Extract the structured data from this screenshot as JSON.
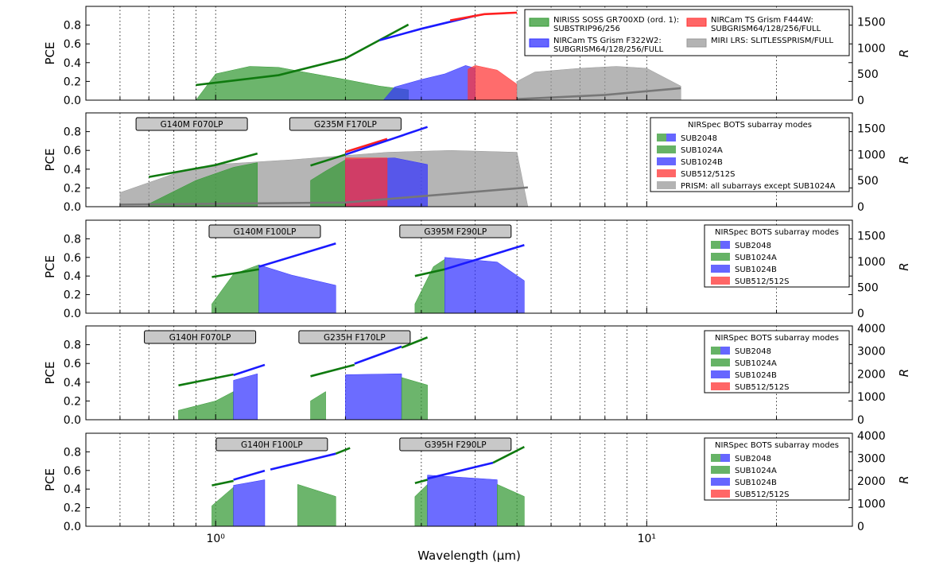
{
  "chart_data": {
    "type": "area",
    "x_scale": "log",
    "xlabel": "Wavelength",
    "xlabel_unit": "(μm)",
    "xlim": [
      0.5,
      30
    ],
    "x_major_ticks": [
      {
        "value": 1,
        "label": "10⁰"
      },
      {
        "value": 10,
        "label": "10¹"
      }
    ],
    "ylabel_left": "PCE",
    "ylabel_right": "R",
    "colors": {
      "green": "#0f7a0f",
      "blue": "#1a1aff",
      "red": "#ff2020",
      "gray": "#777777",
      "fill_green": "#339933",
      "fill_blue": "#3333ff",
      "fill_red": "#ff3333",
      "fill_gray": "#999999"
    },
    "panels": [
      {
        "ylim": [
          0,
          1.0
        ],
        "yticks": [
          "0.0",
          "0.2",
          "0.4",
          "0.6",
          "0.8"
        ],
        "rlim": [
          0,
          1800
        ],
        "rticks": [
          "0",
          "500",
          "1000",
          "1500"
        ],
        "legend_title": "",
        "legend": [
          "NIRISS SOSS GR700XD (ord. 1):\nSUBSTRIP96/256",
          "NIRCam TS Grism F322W2:\nSUBGRISM64/128/256/FULL",
          "NIRCam TS Grism F444W:\nSUBGRISM64/128/256/FULL",
          "MIRI LRS: SLITLESSPRISM/FULL"
        ],
        "mode_labels": [],
        "areas": [
          {
            "series": "NIRISS SOSS GR700XD",
            "color": "green",
            "x": [
              0.9,
              1.0,
              1.2,
              1.4,
              1.6,
              2.0,
              2.4,
              2.8
            ],
            "y": [
              0.0,
              0.28,
              0.36,
              0.35,
              0.3,
              0.22,
              0.15,
              0.11
            ]
          },
          {
            "series": "NIRCam F322W2",
            "color": "blue",
            "x": [
              2.45,
              2.6,
              3.0,
              3.4,
              3.8,
              4.0
            ],
            "y": [
              0.0,
              0.14,
              0.22,
              0.28,
              0.37,
              0.34
            ]
          },
          {
            "series": "NIRCam F444W",
            "color": "red",
            "x": [
              3.85,
              4.0,
              4.5,
              5.0
            ],
            "y": [
              0.33,
              0.37,
              0.32,
              0.17
            ]
          },
          {
            "series": "MIRI LRS",
            "color": "gray",
            "x": [
              5.0,
              5.5,
              7.0,
              8.5,
              10.0,
              12.0
            ],
            "y": [
              0.2,
              0.3,
              0.34,
              0.36,
              0.34,
              0.15
            ]
          }
        ],
        "resolution_curves": [
          {
            "color": "green",
            "x": [
              0.9,
              1.4,
              2.0,
              2.8
            ],
            "y": [
              290,
              480,
              800,
              1450
            ]
          },
          {
            "color": "blue",
            "x": [
              2.4,
              3.0,
              4.0
            ],
            "y": [
              1150,
              1370,
              1620
            ]
          },
          {
            "color": "red",
            "x": [
              3.5,
              4.2,
              5.0
            ],
            "y": [
              1530,
              1650,
              1680
            ]
          },
          {
            "color": "gray",
            "x": [
              5.0,
              8.0,
              12.0
            ],
            "y": [
              20,
              100,
              230
            ]
          }
        ]
      },
      {
        "ylim": [
          0,
          1.0
        ],
        "yticks": [
          "0.0",
          "0.2",
          "0.4",
          "0.6",
          "0.8"
        ],
        "rlim": [
          0,
          1800
        ],
        "rticks": [
          "0",
          "500",
          "1000",
          "1500"
        ],
        "legend_title": "NIRSpec BOTS subarray modes",
        "legend": [
          "SUB2048",
          "SUB1024A",
          "SUB1024B",
          "SUB512/512S",
          "PRISM: all subarrays except SUB1024A"
        ],
        "mode_labels": [
          {
            "text": "G140M F070LP",
            "center_x": 0.88
          },
          {
            "text": "G235M F170LP",
            "center_x": 2.0
          }
        ],
        "areas": [
          {
            "series": "PRISM",
            "color": "gray",
            "x": [
              0.6,
              0.8,
              1.0,
              1.5,
              2.5,
              3.5,
              5.0,
              5.3
            ],
            "y": [
              0.15,
              0.35,
              0.45,
              0.5,
              0.58,
              0.6,
              0.58,
              0.0
            ]
          },
          {
            "series": "G140M F070LP",
            "color": "green",
            "x": [
              0.7,
              0.9,
              1.1,
              1.25
            ],
            "y": [
              0.03,
              0.28,
              0.42,
              0.47
            ]
          },
          {
            "series": "G235M F170LP",
            "color": "green",
            "x": [
              1.66,
              1.8,
              2.0
            ],
            "y": [
              0.28,
              0.38,
              0.5
            ]
          },
          {
            "series": "G235M F170LP",
            "color": "blue",
            "x": [
              2.0,
              2.6,
              3.1
            ],
            "y": [
              0.5,
              0.52,
              0.45
            ]
          },
          {
            "series": "G235M F170LP",
            "color": "red",
            "x": [
              2.0,
              2.5
            ],
            "y": [
              0.52,
              0.52
            ]
          }
        ],
        "resolution_curves": [
          {
            "color": "green",
            "x": [
              0.7,
              1.0,
              1.25
            ],
            "y": [
              570,
              800,
              1020
            ]
          },
          {
            "color": "green",
            "x": [
              1.66,
              2.0
            ],
            "y": [
              790,
              1000
            ]
          },
          {
            "color": "red",
            "x": [
              2.0,
              2.5
            ],
            "y": [
              1050,
              1300
            ]
          },
          {
            "color": "blue",
            "x": [
              2.0,
              3.1
            ],
            "y": [
              1000,
              1530
            ]
          },
          {
            "color": "gray",
            "x": [
              0.6,
              2.0,
              5.3
            ],
            "y": [
              40,
              80,
              370
            ]
          }
        ]
      },
      {
        "ylim": [
          0,
          1.0
        ],
        "yticks": [
          "0.0",
          "0.2",
          "0.4",
          "0.6",
          "0.8"
        ],
        "rlim": [
          0,
          1800
        ],
        "rticks": [
          "0",
          "500",
          "1000",
          "1500"
        ],
        "legend_title": "NIRSpec BOTS subarray modes",
        "legend": [
          "SUB2048",
          "SUB1024A",
          "SUB1024B",
          "SUB512/512S"
        ],
        "mode_labels": [
          {
            "text": "G140M F100LP",
            "center_x": 1.3
          },
          {
            "text": "G395M F290LP",
            "center_x": 3.6
          }
        ],
        "areas": [
          {
            "series": "G140M F100LP",
            "color": "green",
            "x": [
              0.98,
              1.1,
              1.26
            ],
            "y": [
              0.1,
              0.42,
              0.52
            ]
          },
          {
            "series": "G140M F100LP",
            "color": "blue",
            "x": [
              1.26,
              1.5,
              1.9
            ],
            "y": [
              0.52,
              0.41,
              0.3
            ]
          },
          {
            "series": "G395M F290LP",
            "color": "green",
            "x": [
              2.9,
              3.2,
              3.4
            ],
            "y": [
              0.1,
              0.5,
              0.58
            ]
          },
          {
            "series": "G395M F290LP",
            "color": "blue",
            "x": [
              3.4,
              4.5,
              5.2
            ],
            "y": [
              0.6,
              0.55,
              0.35
            ]
          }
        ],
        "resolution_curves": [
          {
            "color": "green",
            "x": [
              0.98,
              1.26
            ],
            "y": [
              700,
              850
            ]
          },
          {
            "color": "blue",
            "x": [
              1.26,
              1.9
            ],
            "y": [
              900,
              1350
            ]
          },
          {
            "color": "green",
            "x": [
              2.9,
              3.4
            ],
            "y": [
              720,
              850
            ]
          },
          {
            "color": "blue",
            "x": [
              3.4,
              5.2
            ],
            "y": [
              850,
              1320
            ]
          }
        ]
      },
      {
        "ylim": [
          0,
          1.0
        ],
        "yticks": [
          "0.0",
          "0.2",
          "0.4",
          "0.6",
          "0.8"
        ],
        "rlim": [
          0,
          4100
        ],
        "rticks": [
          "0",
          "1000",
          "2000",
          "3000",
          "4000"
        ],
        "legend_title": "NIRSpec BOTS subarray modes",
        "legend": [
          "SUB2048",
          "SUB1024A",
          "SUB1024B",
          "SUB512/512S"
        ],
        "mode_labels": [
          {
            "text": "G140H F070LP",
            "center_x": 0.92
          },
          {
            "text": "G235H F170LP",
            "center_x": 2.1
          }
        ],
        "areas": [
          {
            "series": "G140H F070LP",
            "color": "green",
            "x": [
              0.82,
              1.0,
              1.1
            ],
            "y": [
              0.1,
              0.2,
              0.3
            ]
          },
          {
            "series": "G140H F070LP",
            "color": "blue",
            "x": [
              1.1,
              1.25
            ],
            "y": [
              0.42,
              0.49
            ]
          },
          {
            "series": "G235H F170LP",
            "color": "green",
            "x": [
              1.66,
              1.8
            ],
            "y": [
              0.2,
              0.3
            ]
          },
          {
            "series": "G235H F170LP",
            "color": "blue",
            "x": [
              2.0,
              2.7
            ],
            "y": [
              0.48,
              0.49
            ]
          },
          {
            "series": "G235H F170LP",
            "color": "green",
            "x": [
              2.7,
              3.1
            ],
            "y": [
              0.45,
              0.37
            ]
          }
        ],
        "resolution_curves": [
          {
            "color": "green",
            "x": [
              0.82,
              1.1
            ],
            "y": [
              1500,
              1980
            ]
          },
          {
            "color": "blue",
            "x": [
              1.1,
              1.3
            ],
            "y": [
              1950,
              2400
            ]
          },
          {
            "color": "green",
            "x": [
              1.66,
              2.1
            ],
            "y": [
              1900,
              2400
            ]
          },
          {
            "color": "blue",
            "x": [
              2.1,
              2.7
            ],
            "y": [
              2450,
              3200
            ]
          },
          {
            "color": "green",
            "x": [
              2.7,
              3.1
            ],
            "y": [
              3150,
              3600
            ]
          }
        ]
      },
      {
        "ylim": [
          0,
          1.0
        ],
        "yticks": [
          "0.0",
          "0.2",
          "0.4",
          "0.6",
          "0.8"
        ],
        "rlim": [
          0,
          4100
        ],
        "rticks": [
          "0",
          "1000",
          "2000",
          "3000",
          "4000"
        ],
        "legend_title": "NIRSpec BOTS subarray modes",
        "legend": [
          "SUB2048",
          "SUB1024A",
          "SUB1024B",
          "SUB512/512S"
        ],
        "mode_labels": [
          {
            "text": "G140H F100LP",
            "center_x": 1.35
          },
          {
            "text": "G395H F290LP",
            "center_x": 3.6
          }
        ],
        "areas": [
          {
            "series": "G140H F100LP",
            "color": "green",
            "x": [
              0.98,
              1.1
            ],
            "y": [
              0.22,
              0.42
            ]
          },
          {
            "series": "G140H F100LP",
            "color": "blue",
            "x": [
              1.1,
              1.3
            ],
            "y": [
              0.44,
              0.5
            ]
          },
          {
            "series": "G140H F100LP",
            "color": "green",
            "x": [
              1.55,
              1.9
            ],
            "y": [
              0.45,
              0.32
            ]
          },
          {
            "series": "G395H F290LP",
            "color": "green",
            "x": [
              2.9,
              3.1
            ],
            "y": [
              0.32,
              0.45
            ]
          },
          {
            "series": "G395H F290LP",
            "color": "blue",
            "x": [
              3.1,
              4.5
            ],
            "y": [
              0.55,
              0.5
            ]
          },
          {
            "series": "G395H F290LP",
            "color": "green",
            "x": [
              4.5,
              5.2
            ],
            "y": [
              0.45,
              0.32
            ]
          }
        ],
        "resolution_curves": [
          {
            "color": "green",
            "x": [
              0.98,
              1.1
            ],
            "y": [
              1800,
              2000
            ]
          },
          {
            "color": "blue",
            "x": [
              1.1,
              1.3
            ],
            "y": [
              2050,
              2450
            ]
          },
          {
            "color": "blue",
            "x": [
              1.34,
              1.9
            ],
            "y": [
              2500,
              3200
            ]
          },
          {
            "color": "green",
            "x": [
              1.9,
              2.05
            ],
            "y": [
              3200,
              3450
            ]
          },
          {
            "color": "green",
            "x": [
              2.9,
              3.1
            ],
            "y": [
              1900,
              2050
            ]
          },
          {
            "color": "blue",
            "x": [
              3.1,
              4.4
            ],
            "y": [
              2100,
              2800
            ]
          },
          {
            "color": "green",
            "x": [
              4.4,
              5.2
            ],
            "y": [
              2800,
              3500
            ]
          }
        ]
      }
    ]
  }
}
